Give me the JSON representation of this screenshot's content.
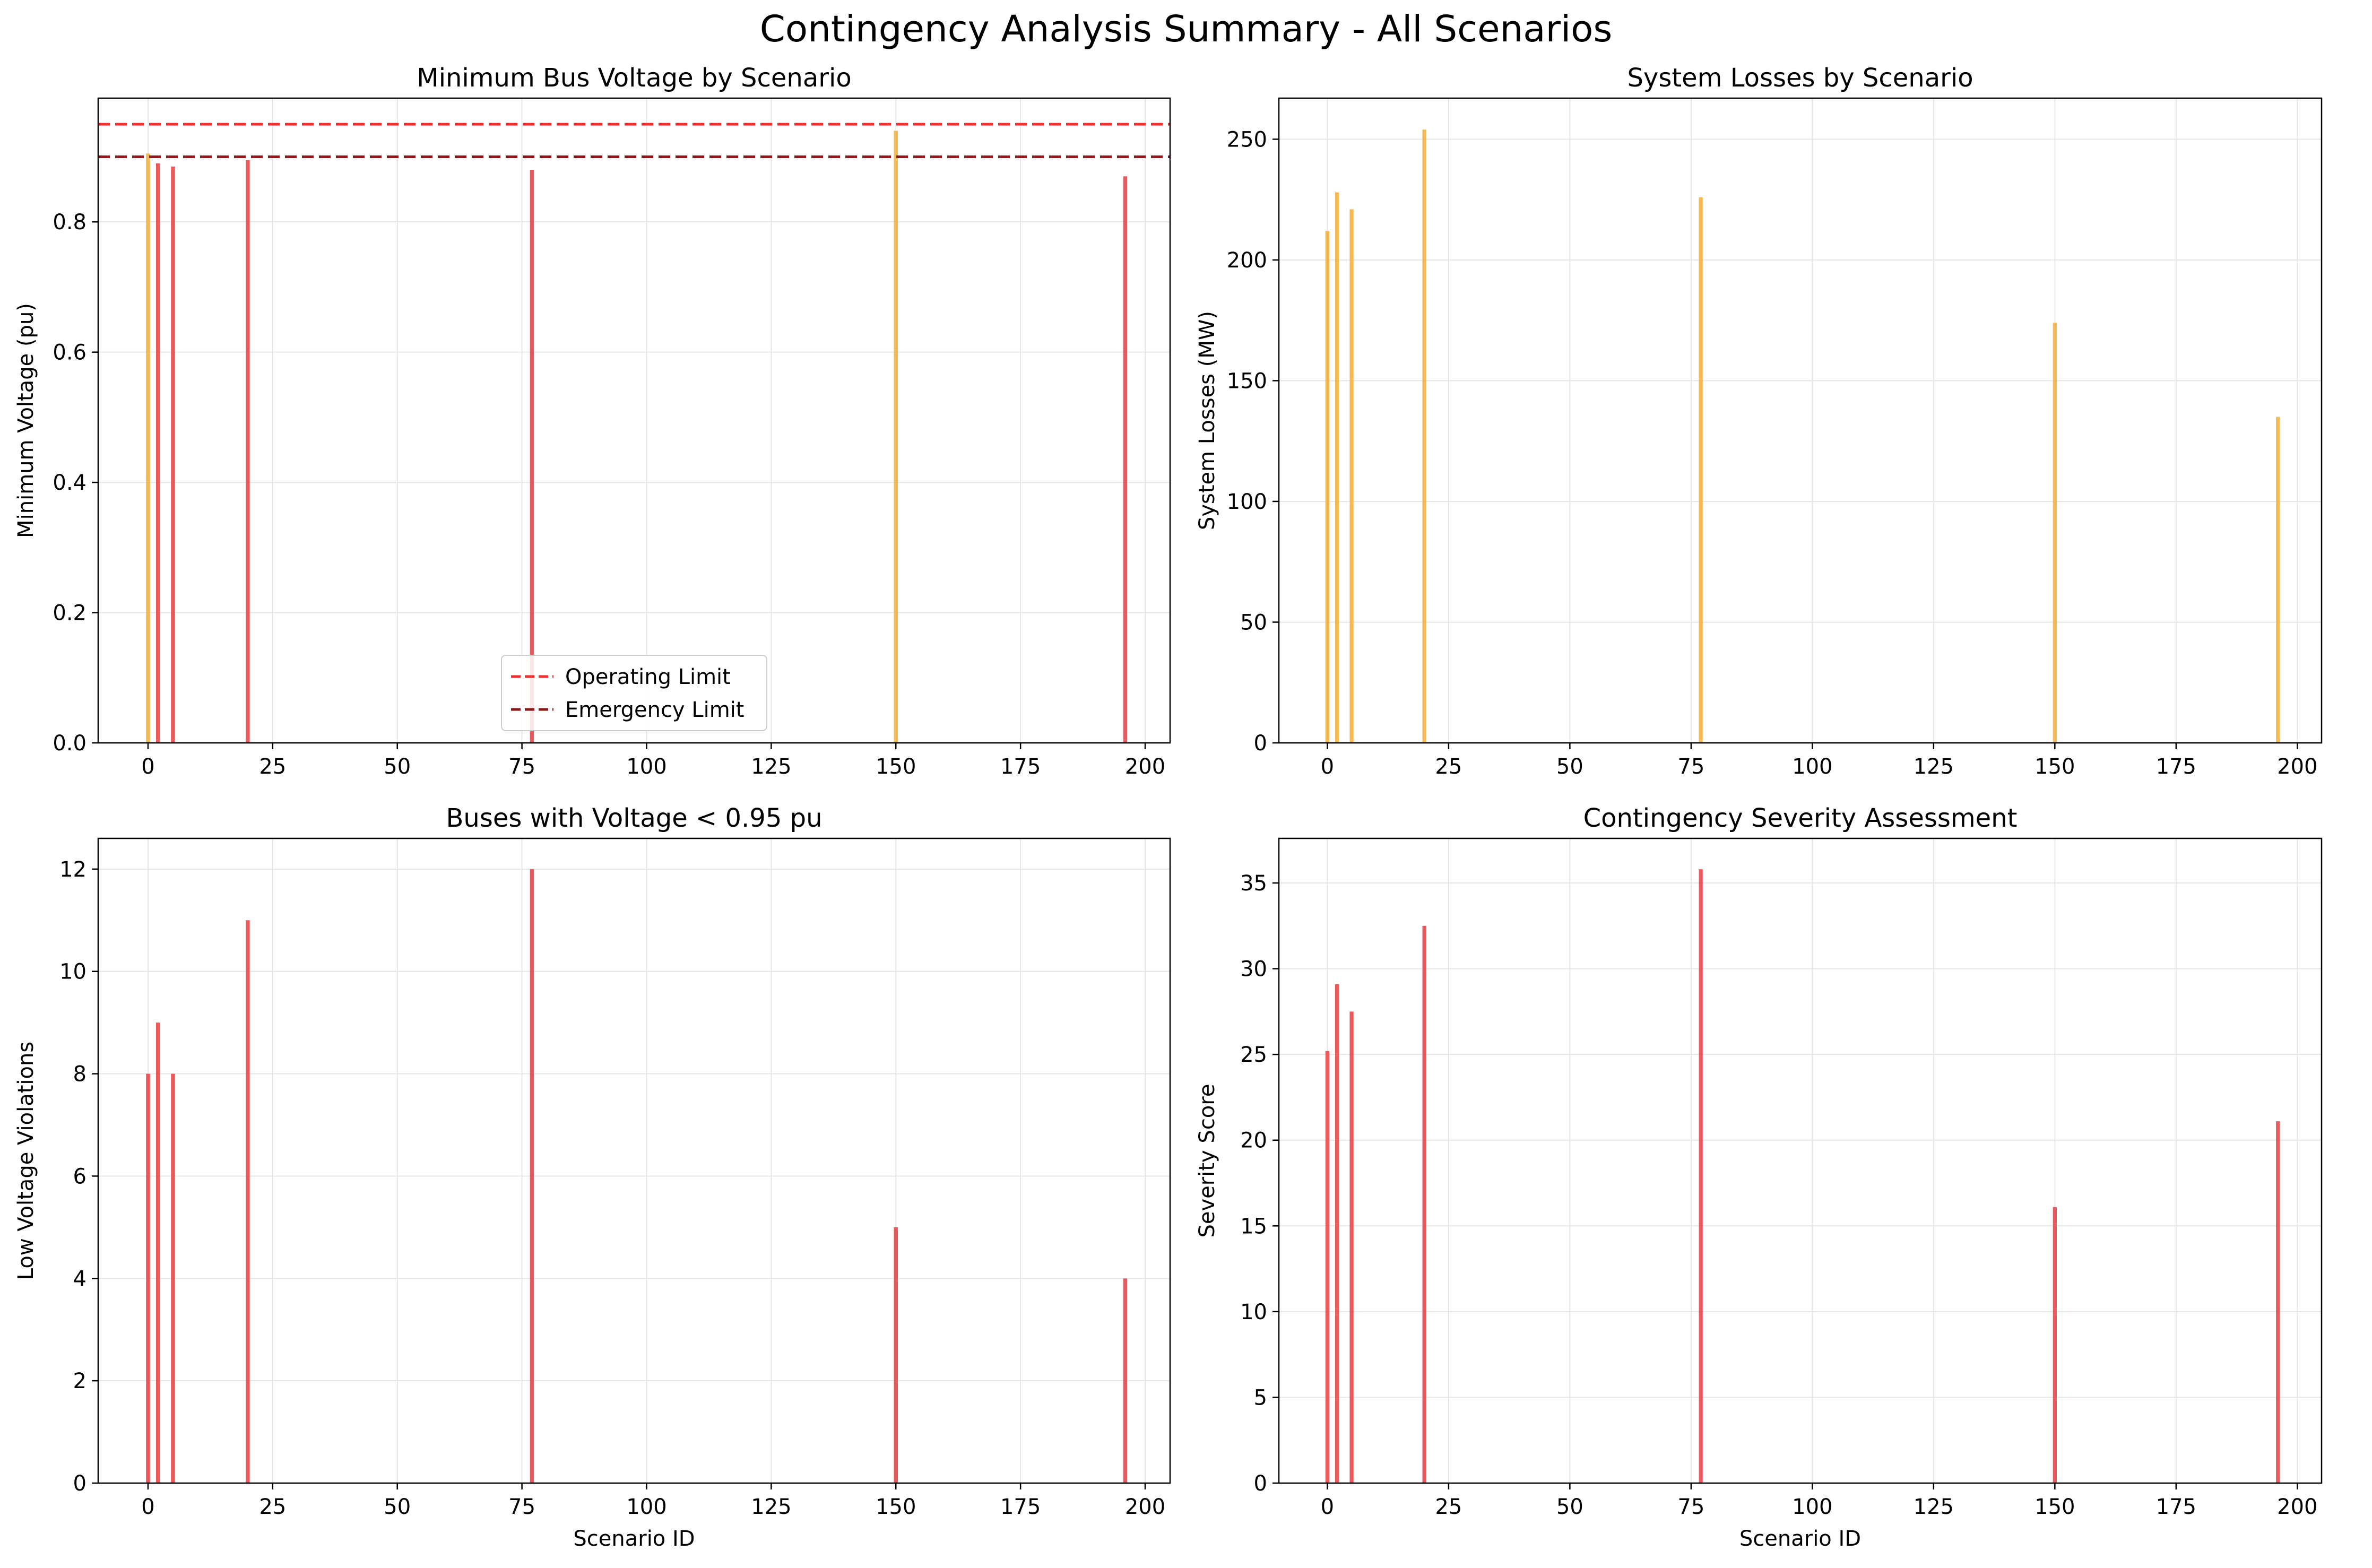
{
  "figure": {
    "title": "Contingency Analysis Summary - All Scenarios"
  },
  "chart_data": [
    {
      "type": "bar",
      "title": "Minimum Bus Voltage by Scenario",
      "xlabel": "",
      "ylabel": "Minimum Voltage (pu)",
      "xlim": [
        -10,
        205
      ],
      "ylim": [
        0,
        0.99
      ],
      "xticks": [
        0,
        25,
        50,
        75,
        100,
        125,
        150,
        175,
        200
      ],
      "yticks": [
        0.0,
        0.2,
        0.4,
        0.6,
        0.8
      ],
      "ytick_decimals": 1,
      "grid": true,
      "x": [
        0,
        2,
        5,
        20,
        77,
        150,
        196
      ],
      "values": [
        0.905,
        0.89,
        0.885,
        0.895,
        0.88,
        0.94,
        0.87
      ],
      "colors": [
        "#f5b342",
        "#e8474a",
        "#e8474a",
        "#e8474a",
        "#e8474a",
        "#f5b342",
        "#e8474a"
      ],
      "reference_lines": [
        {
          "name": "Operating Limit",
          "y": 0.95,
          "color": "#f03030"
        },
        {
          "name": "Emergency Limit",
          "y": 0.9,
          "color": "#8b1a1a"
        }
      ],
      "legend": "lower-center"
    },
    {
      "type": "bar",
      "title": "System Losses by Scenario",
      "xlabel": "",
      "ylabel": "System Losses (MW)",
      "xlim": [
        -10,
        205
      ],
      "ylim": [
        0,
        267
      ],
      "xticks": [
        0,
        25,
        50,
        75,
        100,
        125,
        150,
        175,
        200
      ],
      "yticks": [
        0,
        50,
        100,
        150,
        200,
        250
      ],
      "ytick_decimals": 0,
      "grid": true,
      "x": [
        0,
        2,
        5,
        20,
        77,
        150,
        196
      ],
      "values": [
        212,
        228,
        221,
        254,
        226,
        174,
        135
      ],
      "colors": [
        "#f5b342",
        "#f5b342",
        "#f5b342",
        "#f5b342",
        "#f5b342",
        "#f5b342",
        "#f5b342"
      ]
    },
    {
      "type": "bar",
      "title": "Buses with Voltage < 0.95 pu",
      "xlabel": "Scenario ID",
      "ylabel": "Low Voltage Violations",
      "xlim": [
        -10,
        205
      ],
      "ylim": [
        0,
        12.6
      ],
      "xticks": [
        0,
        25,
        50,
        75,
        100,
        125,
        150,
        175,
        200
      ],
      "yticks": [
        0,
        2,
        4,
        6,
        8,
        10,
        12
      ],
      "ytick_decimals": 0,
      "grid": true,
      "x": [
        0,
        2,
        5,
        20,
        77,
        150,
        196
      ],
      "values": [
        8,
        9,
        8,
        11,
        12,
        5,
        4
      ],
      "colors": [
        "#e8474a",
        "#e8474a",
        "#e8474a",
        "#e8474a",
        "#e8474a",
        "#e8474a",
        "#e8474a"
      ]
    },
    {
      "type": "bar",
      "title": "Contingency Severity Assessment",
      "xlabel": "Scenario ID",
      "ylabel": "Severity Score",
      "xlim": [
        -10,
        205
      ],
      "ylim": [
        0,
        37.6
      ],
      "xticks": [
        0,
        25,
        50,
        75,
        100,
        125,
        150,
        175,
        200
      ],
      "yticks": [
        0,
        5,
        10,
        15,
        20,
        25,
        30,
        35
      ],
      "ytick_decimals": 0,
      "grid": true,
      "x": [
        0,
        2,
        5,
        20,
        77,
        150,
        196
      ],
      "values": [
        25.2,
        29.1,
        27.5,
        32.5,
        35.8,
        16.1,
        21.1
      ],
      "colors": [
        "#e8474a",
        "#e8474a",
        "#e8474a",
        "#e8474a",
        "#e8474a",
        "#e8474a",
        "#e8474a"
      ]
    }
  ]
}
